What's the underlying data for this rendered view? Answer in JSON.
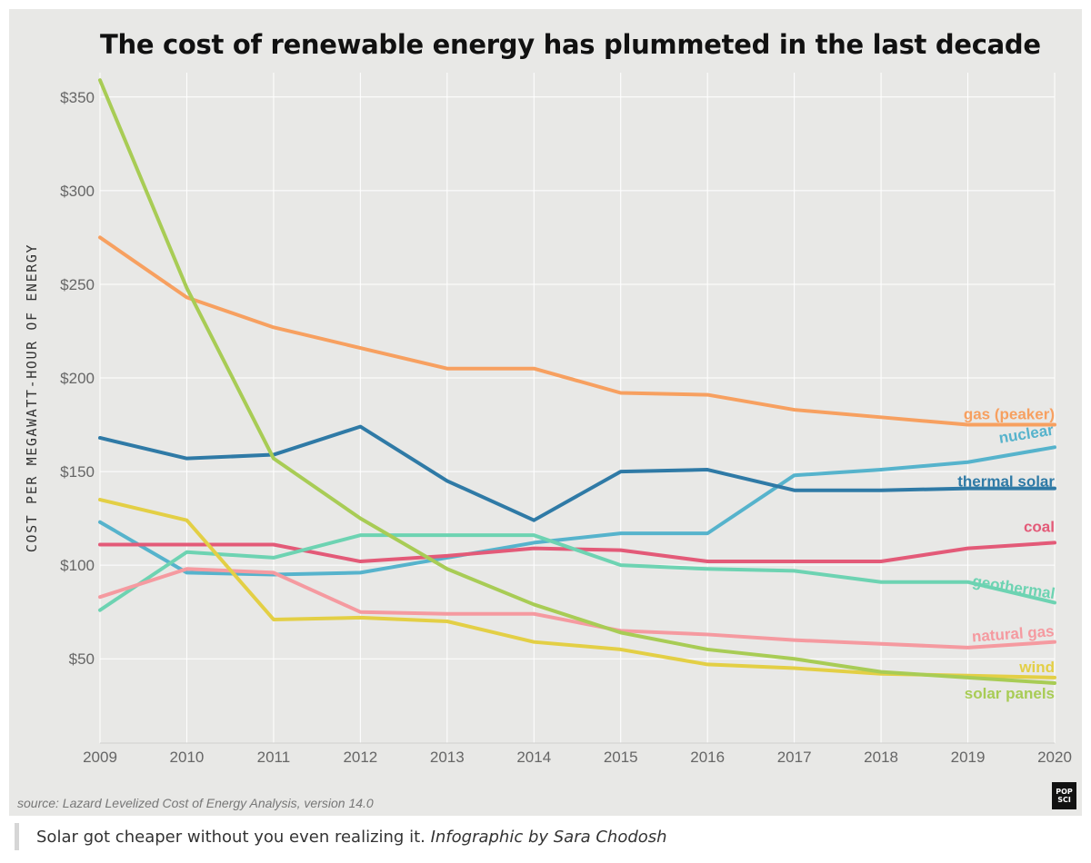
{
  "chart_data": {
    "type": "line",
    "title": "The cost of renewable energy has plummeted in the last decade",
    "ylabel": "COST PER MEGAWATT-HOUR OF ENERGY",
    "xlabel": "",
    "x": [
      2009,
      2010,
      2011,
      2012,
      2013,
      2014,
      2015,
      2016,
      2017,
      2018,
      2019,
      2020
    ],
    "xlim": [
      2009,
      2020
    ],
    "ylim": [
      5,
      363
    ],
    "yticks": [
      50,
      100,
      150,
      200,
      250,
      300,
      350
    ],
    "ytick_labels": [
      "$50",
      "$100",
      "$150",
      "$200",
      "$250",
      "$300",
      "$350"
    ],
    "grid": true,
    "legend": "inline labels at right end of lines",
    "series": [
      {
        "name": "gas (peaker)",
        "color": "#f7a060",
        "values": [
          275,
          243,
          227,
          216,
          205,
          205,
          192,
          191,
          183,
          179,
          175,
          175
        ]
      },
      {
        "name": "nuclear",
        "color": "#56b3cc",
        "values": [
          123,
          96,
          95,
          96,
          104,
          112,
          117,
          117,
          148,
          151,
          155,
          163
        ]
      },
      {
        "name": "thermal solar",
        "color": "#2f7aa6",
        "values": [
          168,
          157,
          159,
          174,
          145,
          124,
          150,
          151,
          140,
          140,
          141,
          141
        ]
      },
      {
        "name": "coal",
        "color": "#e35a78",
        "values": [
          111,
          111,
          111,
          102,
          105,
          109,
          108,
          102,
          102,
          102,
          109,
          112
        ]
      },
      {
        "name": "geothermal",
        "color": "#6dd3b2",
        "values": [
          76,
          107,
          104,
          116,
          116,
          116,
          100,
          98,
          97,
          91,
          91,
          80
        ]
      },
      {
        "name": "natural gas",
        "color": "#f59aa0",
        "values": [
          83,
          98,
          96,
          75,
          74,
          74,
          65,
          63,
          60,
          58,
          56,
          59
        ]
      },
      {
        "name": "wind",
        "color": "#e3cf45",
        "values": [
          135,
          124,
          71,
          72,
          70,
          59,
          55,
          47,
          45,
          42,
          41,
          40
        ]
      },
      {
        "name": "solar panels",
        "color": "#a8cc55",
        "values": [
          359,
          248,
          157,
          125,
          98,
          79,
          64,
          55,
          50,
          43,
          40,
          37
        ]
      }
    ]
  },
  "source": "source: Lazard Levelized Cost of Energy Analysis, version 14.0",
  "logo": {
    "line1": "POP",
    "line2": "SCI"
  },
  "caption": {
    "text": "Solar got cheaper without you even realizing it. ",
    "credit": "Infographic by Sara Chodosh"
  }
}
